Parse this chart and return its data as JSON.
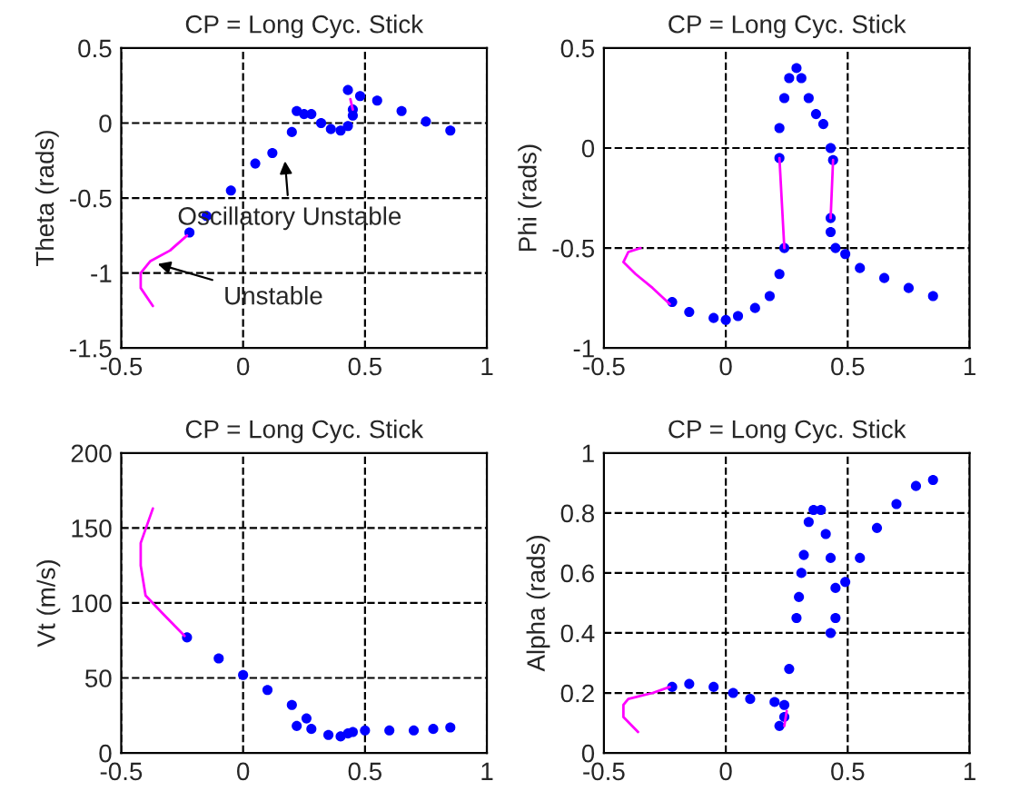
{
  "chart_data": [
    {
      "type": "scatter",
      "title": "CP = Long Cyc. Stick",
      "ylabel": "Theta (rads)",
      "xlim": [
        -0.5,
        1
      ],
      "xticks": [
        -0.5,
        0,
        0.5,
        1
      ],
      "ylim": [
        -1.5,
        0.5
      ],
      "yticks": [
        -1.5,
        -1,
        -0.5,
        0,
        0.5
      ],
      "grid": true,
      "legend": false,
      "annotations": [
        {
          "text": "Oscillatory Unstable",
          "x": 0.17,
          "y": -0.22
        },
        {
          "text": "Unstable",
          "x": -0.37,
          "y": -0.93
        }
      ],
      "series": [
        {
          "type": "line",
          "color": "#ff00ff",
          "marker": "none",
          "x": [
            -0.37,
            -0.42,
            -0.42,
            -0.38,
            -0.3,
            -0.23,
            null,
            0.45,
            0.44
          ],
          "values": [
            -1.22,
            -1.1,
            -1.0,
            -0.92,
            -0.85,
            -0.75,
            null,
            0.09,
            0.16
          ]
        },
        {
          "color": "#0000ff",
          "marker": "circle",
          "x": [
            -0.22,
            -0.15,
            -0.05,
            0.05,
            0.12,
            0.2,
            0.22,
            0.25,
            0.28,
            0.32,
            0.36,
            0.4,
            0.43,
            0.45,
            0.45,
            0.43,
            0.48,
            0.55,
            0.65,
            0.75,
            0.85
          ],
          "values": [
            -0.73,
            -0.62,
            -0.45,
            -0.27,
            -0.2,
            -0.06,
            0.08,
            0.06,
            0.06,
            0.0,
            -0.04,
            -0.05,
            -0.02,
            0.05,
            0.09,
            0.22,
            0.18,
            0.15,
            0.08,
            0.01,
            -0.05
          ]
        }
      ]
    },
    {
      "type": "scatter",
      "title": "CP = Long Cyc. Stick",
      "ylabel": "Phi (rads)",
      "xlim": [
        -0.5,
        1
      ],
      "xticks": [
        -0.5,
        0,
        0.5,
        1
      ],
      "ylim": [
        -1,
        0.5
      ],
      "yticks": [
        -1,
        -0.5,
        0,
        0.5
      ],
      "grid": true,
      "legend": false,
      "series": [
        {
          "type": "line",
          "color": "#ff00ff",
          "marker": "none",
          "x": [
            -0.35,
            -0.4,
            -0.42,
            -0.37,
            -0.3,
            -0.23,
            null,
            0.24,
            0.22,
            null,
            0.44,
            0.43
          ],
          "values": [
            -0.5,
            -0.52,
            -0.57,
            -0.63,
            -0.7,
            -0.78,
            null,
            -0.5,
            -0.05,
            null,
            -0.06,
            -0.35
          ]
        },
        {
          "color": "#0000ff",
          "marker": "circle",
          "x": [
            -0.22,
            -0.15,
            -0.05,
            0.0,
            0.05,
            0.12,
            0.18,
            0.22,
            0.24,
            0.22,
            0.22,
            0.24,
            0.26,
            0.29,
            0.31,
            0.34,
            0.37,
            0.4,
            0.43,
            0.44,
            0.43,
            0.43,
            0.45,
            0.49,
            0.55,
            0.65,
            0.75,
            0.85
          ],
          "values": [
            -0.77,
            -0.82,
            -0.85,
            -0.86,
            -0.84,
            -0.8,
            -0.74,
            -0.63,
            -0.5,
            -0.05,
            0.1,
            0.25,
            0.35,
            0.4,
            0.35,
            0.25,
            0.17,
            0.12,
            0.0,
            -0.06,
            -0.35,
            -0.42,
            -0.5,
            -0.53,
            -0.6,
            -0.65,
            -0.7,
            -0.74
          ]
        }
      ]
    },
    {
      "type": "scatter",
      "title": "CP = Long Cyc. Stick",
      "ylabel": "Vt (m/s)",
      "xlim": [
        -0.5,
        1
      ],
      "xticks": [
        -0.5,
        0,
        0.5,
        1
      ],
      "ylim": [
        0,
        200
      ],
      "yticks": [
        0,
        50,
        100,
        150,
        200
      ],
      "grid": true,
      "legend": false,
      "series": [
        {
          "type": "line",
          "color": "#ff00ff",
          "marker": "none",
          "x": [
            -0.37,
            -0.42,
            -0.42,
            -0.4,
            -0.33,
            -0.24
          ],
          "values": [
            163,
            140,
            125,
            105,
            93,
            78
          ]
        },
        {
          "color": "#0000ff",
          "marker": "circle",
          "x": [
            -0.23,
            -0.1,
            0.0,
            0.1,
            0.2,
            0.26,
            0.22,
            0.28,
            0.35,
            0.4,
            0.43,
            0.45,
            0.5,
            0.6,
            0.7,
            0.78,
            0.85
          ],
          "values": [
            77,
            63,
            52,
            42,
            32,
            23,
            18,
            16,
            12,
            11,
            13,
            14,
            15,
            15,
            15,
            16,
            17
          ]
        }
      ]
    },
    {
      "type": "scatter",
      "title": "CP = Long Cyc. Stick",
      "ylabel": "Alpha (rads)",
      "xlim": [
        -0.5,
        1
      ],
      "xticks": [
        -0.5,
        0,
        0.5,
        1
      ],
      "ylim": [
        0,
        1
      ],
      "yticks": [
        0,
        0.2,
        0.4,
        0.6,
        0.8,
        1
      ],
      "grid": true,
      "legend": false,
      "series": [
        {
          "type": "line",
          "color": "#ff00ff",
          "marker": "none",
          "x": [
            -0.36,
            -0.42,
            -0.42,
            -0.4,
            -0.3,
            -0.23,
            null,
            0.24,
            0.25
          ],
          "values": [
            0.07,
            0.12,
            0.16,
            0.18,
            0.2,
            0.22,
            null,
            0.09,
            0.14
          ]
        },
        {
          "color": "#0000ff",
          "marker": "circle",
          "x": [
            -0.22,
            -0.15,
            -0.05,
            0.03,
            0.1,
            0.2,
            0.24,
            0.22,
            0.24,
            0.26,
            0.29,
            0.3,
            0.31,
            0.32,
            0.34,
            0.36,
            0.39,
            0.41,
            0.43,
            0.45,
            0.45,
            0.43,
            0.49,
            0.55,
            0.62,
            0.7,
            0.78,
            0.85
          ],
          "values": [
            0.22,
            0.23,
            0.22,
            0.2,
            0.18,
            0.17,
            0.16,
            0.09,
            0.12,
            0.28,
            0.45,
            0.52,
            0.6,
            0.66,
            0.77,
            0.81,
            0.81,
            0.73,
            0.65,
            0.55,
            0.45,
            0.4,
            0.57,
            0.65,
            0.75,
            0.83,
            0.89,
            0.91
          ]
        }
      ]
    }
  ]
}
